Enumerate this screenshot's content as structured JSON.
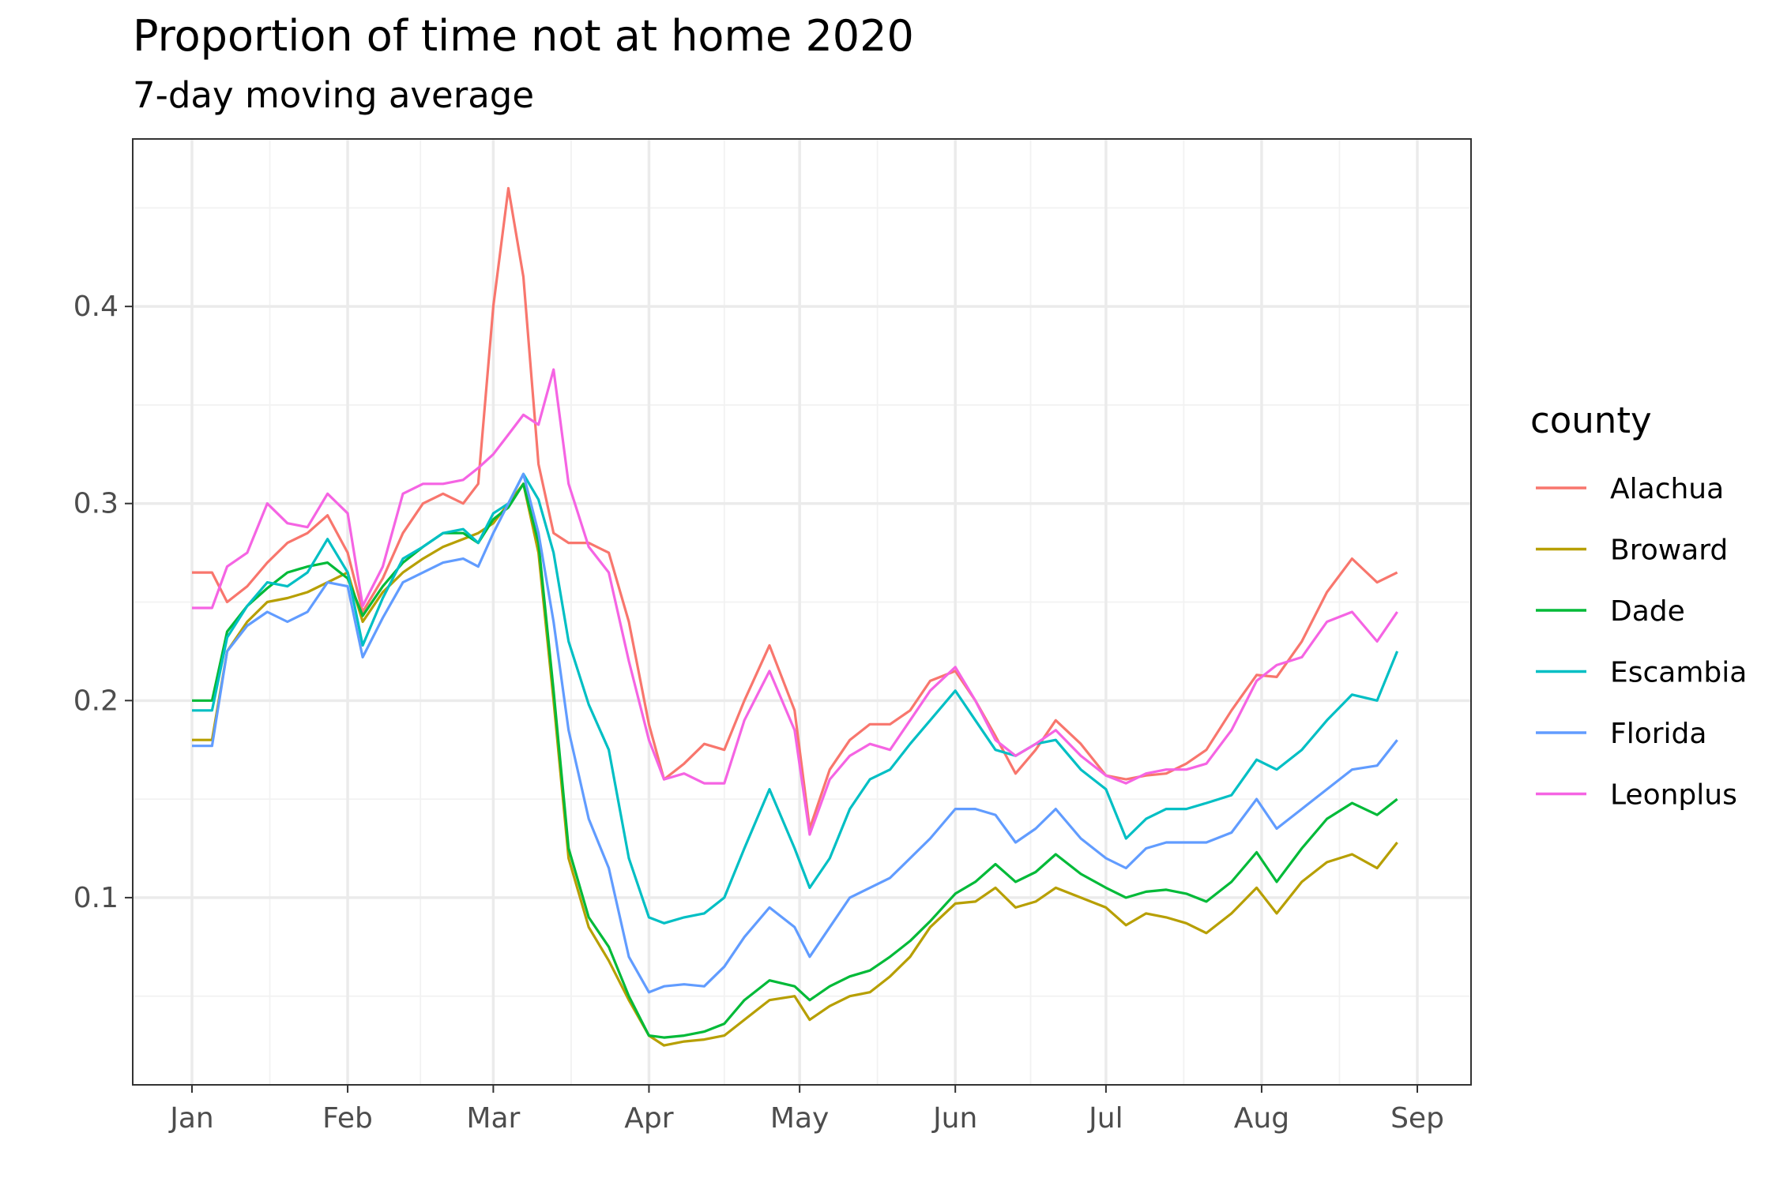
{
  "chart_data": {
    "type": "line",
    "title": "Proportion of time not at home 2020",
    "subtitle": "7-day moving average",
    "xlabel": "",
    "ylabel": "",
    "x_axis": {
      "type": "date",
      "range": [
        "2020-01-01",
        "2020-09-01"
      ],
      "tick_dates": [
        "2020-01-01",
        "2020-02-01",
        "2020-03-01",
        "2020-04-01",
        "2020-05-01",
        "2020-06-01",
        "2020-07-01",
        "2020-08-01",
        "2020-09-01"
      ],
      "tick_labels": [
        "Jan",
        "Feb",
        "Mar",
        "Apr",
        "May",
        "Jun",
        "Jul",
        "Aug",
        "Sep"
      ]
    },
    "y_axis": {
      "range": [
        0.005,
        0.485
      ],
      "ticks": [
        0.1,
        0.2,
        0.3,
        0.4
      ],
      "tick_labels": [
        "0.1",
        "0.2",
        "0.3",
        "0.4"
      ]
    },
    "grid": true,
    "legend": {
      "title": "county",
      "position": "right"
    },
    "x": [
      "2020-01-01",
      "2020-01-05",
      "2020-01-08",
      "2020-01-12",
      "2020-01-16",
      "2020-01-20",
      "2020-01-24",
      "2020-01-28",
      "2020-02-01",
      "2020-02-04",
      "2020-02-08",
      "2020-02-12",
      "2020-02-16",
      "2020-02-20",
      "2020-02-24",
      "2020-02-27",
      "2020-03-01",
      "2020-03-04",
      "2020-03-07",
      "2020-03-10",
      "2020-03-13",
      "2020-03-16",
      "2020-03-20",
      "2020-03-24",
      "2020-03-28",
      "2020-04-01",
      "2020-04-04",
      "2020-04-08",
      "2020-04-12",
      "2020-04-16",
      "2020-04-20",
      "2020-04-25",
      "2020-04-30",
      "2020-05-03",
      "2020-05-07",
      "2020-05-11",
      "2020-05-15",
      "2020-05-19",
      "2020-05-23",
      "2020-05-27",
      "2020-06-01",
      "2020-06-05",
      "2020-06-09",
      "2020-06-13",
      "2020-06-17",
      "2020-06-21",
      "2020-06-26",
      "2020-07-01",
      "2020-07-05",
      "2020-07-09",
      "2020-07-13",
      "2020-07-17",
      "2020-07-21",
      "2020-07-26",
      "2020-07-31",
      "2020-08-04",
      "2020-08-09",
      "2020-08-14",
      "2020-08-19",
      "2020-08-24",
      "2020-08-28"
    ],
    "series": [
      {
        "name": "Alachua",
        "color": "#F8766D",
        "values": [
          0.265,
          0.265,
          0.25,
          0.258,
          0.27,
          0.28,
          0.285,
          0.294,
          0.275,
          0.245,
          0.262,
          0.285,
          0.3,
          0.305,
          0.3,
          0.31,
          0.4,
          0.46,
          0.415,
          0.32,
          0.285,
          0.28,
          0.28,
          0.275,
          0.24,
          0.188,
          0.16,
          0.168,
          0.178,
          0.175,
          0.2,
          0.228,
          0.195,
          0.135,
          0.165,
          0.18,
          0.188,
          0.188,
          0.195,
          0.21,
          0.215,
          0.2,
          0.182,
          0.163,
          0.175,
          0.19,
          0.178,
          0.162,
          0.16,
          0.162,
          0.163,
          0.168,
          0.175,
          0.195,
          0.213,
          0.212,
          0.23,
          0.255,
          0.272,
          0.26,
          0.265
        ]
      },
      {
        "name": "Broward",
        "color": "#B79F00",
        "values": [
          0.18,
          0.18,
          0.225,
          0.24,
          0.25,
          0.252,
          0.255,
          0.26,
          0.265,
          0.24,
          0.255,
          0.265,
          0.272,
          0.278,
          0.282,
          0.285,
          0.29,
          0.3,
          0.31,
          0.275,
          0.2,
          0.12,
          0.085,
          0.068,
          0.048,
          0.03,
          0.025,
          0.027,
          0.028,
          0.03,
          0.038,
          0.048,
          0.05,
          0.038,
          0.045,
          0.05,
          0.052,
          0.06,
          0.07,
          0.085,
          0.097,
          0.098,
          0.105,
          0.095,
          0.098,
          0.105,
          0.1,
          0.095,
          0.086,
          0.092,
          0.09,
          0.087,
          0.082,
          0.092,
          0.105,
          0.092,
          0.108,
          0.118,
          0.122,
          0.115,
          0.128
        ]
      },
      {
        "name": "Dade",
        "color": "#00BA38",
        "values": [
          0.2,
          0.2,
          0.235,
          0.248,
          0.257,
          0.265,
          0.268,
          0.27,
          0.262,
          0.243,
          0.258,
          0.27,
          0.278,
          0.285,
          0.285,
          0.28,
          0.292,
          0.298,
          0.31,
          0.28,
          0.205,
          0.125,
          0.09,
          0.075,
          0.05,
          0.03,
          0.029,
          0.03,
          0.032,
          0.036,
          0.048,
          0.058,
          0.055,
          0.048,
          0.055,
          0.06,
          0.063,
          0.07,
          0.078,
          0.088,
          0.102,
          0.108,
          0.117,
          0.108,
          0.113,
          0.122,
          0.112,
          0.105,
          0.1,
          0.103,
          0.104,
          0.102,
          0.098,
          0.108,
          0.123,
          0.108,
          0.125,
          0.14,
          0.148,
          0.142,
          0.15
        ]
      },
      {
        "name": "Escambia",
        "color": "#00BFC4",
        "values": [
          0.195,
          0.195,
          0.232,
          0.248,
          0.26,
          0.258,
          0.265,
          0.282,
          0.265,
          0.228,
          0.252,
          0.272,
          0.278,
          0.285,
          0.287,
          0.28,
          0.295,
          0.3,
          0.315,
          0.302,
          0.275,
          0.23,
          0.198,
          0.175,
          0.12,
          0.09,
          0.087,
          0.09,
          0.092,
          0.1,
          0.125,
          0.155,
          0.125,
          0.105,
          0.12,
          0.145,
          0.16,
          0.165,
          0.178,
          0.19,
          0.205,
          0.19,
          0.175,
          0.172,
          0.178,
          0.18,
          0.165,
          0.155,
          0.13,
          0.14,
          0.145,
          0.145,
          0.148,
          0.152,
          0.17,
          0.165,
          0.175,
          0.19,
          0.203,
          0.2,
          0.225
        ]
      },
      {
        "name": "Florida",
        "color": "#619CFF",
        "values": [
          0.177,
          0.177,
          0.225,
          0.238,
          0.245,
          0.24,
          0.245,
          0.26,
          0.258,
          0.222,
          0.242,
          0.26,
          0.265,
          0.27,
          0.272,
          0.268,
          0.285,
          0.3,
          0.315,
          0.285,
          0.24,
          0.185,
          0.14,
          0.115,
          0.07,
          0.052,
          0.055,
          0.056,
          0.055,
          0.065,
          0.08,
          0.095,
          0.085,
          0.07,
          0.085,
          0.1,
          0.105,
          0.11,
          0.12,
          0.13,
          0.145,
          0.145,
          0.142,
          0.128,
          0.135,
          0.145,
          0.13,
          0.12,
          0.115,
          0.125,
          0.128,
          0.128,
          0.128,
          0.133,
          0.15,
          0.135,
          0.145,
          0.155,
          0.165,
          0.167,
          0.18
        ]
      },
      {
        "name": "Leonplus",
        "color": "#F564E3",
        "values": [
          0.247,
          0.247,
          0.268,
          0.275,
          0.3,
          0.29,
          0.288,
          0.305,
          0.295,
          0.248,
          0.268,
          0.305,
          0.31,
          0.31,
          0.312,
          0.318,
          0.325,
          0.335,
          0.345,
          0.34,
          0.368,
          0.31,
          0.278,
          0.265,
          0.22,
          0.18,
          0.16,
          0.163,
          0.158,
          0.158,
          0.19,
          0.215,
          0.185,
          0.132,
          0.16,
          0.172,
          0.178,
          0.175,
          0.19,
          0.205,
          0.217,
          0.2,
          0.18,
          0.172,
          0.178,
          0.185,
          0.172,
          0.162,
          0.158,
          0.163,
          0.165,
          0.165,
          0.168,
          0.185,
          0.21,
          0.218,
          0.222,
          0.24,
          0.245,
          0.23,
          0.245
        ]
      }
    ]
  }
}
